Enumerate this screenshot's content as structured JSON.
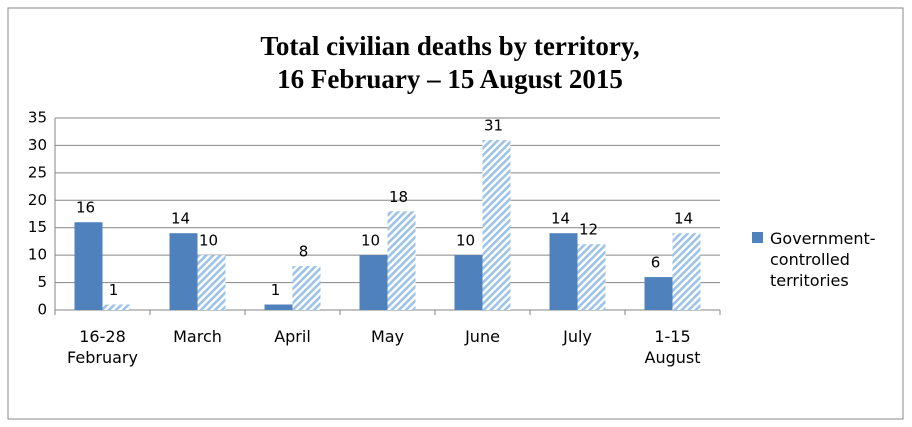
{
  "chart_data": {
    "type": "bar",
    "title": "Total civilian deaths by territory,\n16 February – 15 August 2015",
    "categories": [
      "16-28 February",
      "March",
      "April",
      "May",
      "June",
      "July",
      "1-15 August"
    ],
    "series": [
      {
        "name": "Government-controlled territories",
        "color": "#4f81bd",
        "values": [
          16,
          14,
          1,
          10,
          10,
          14,
          6
        ]
      },
      {
        "color": "#9dc3e6",
        "pattern": "hatch",
        "values": [
          1,
          10,
          8,
          18,
          31,
          12,
          14
        ]
      }
    ],
    "ylim": [
      0,
      35
    ],
    "yticks": [
      0,
      5,
      10,
      15,
      20,
      25,
      30,
      35
    ],
    "grid": true,
    "legend": "right"
  }
}
